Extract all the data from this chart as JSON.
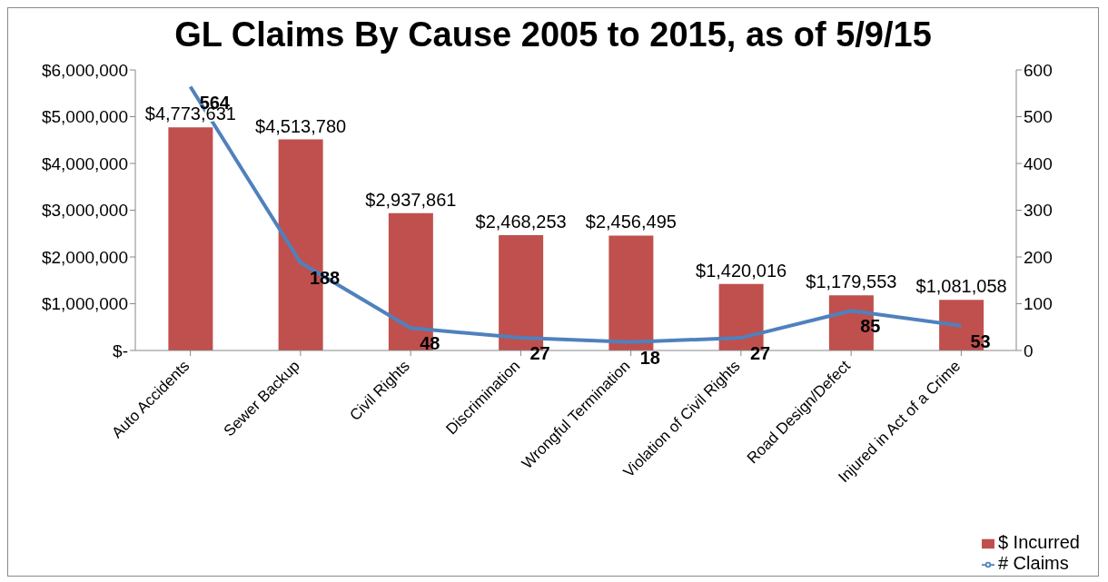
{
  "chart_data": {
    "type": "bar",
    "title": "GL Claims By Cause 2005 to 2015, as of 5/9/15",
    "categories": [
      "Auto Accidents",
      "Sewer Backup",
      "Civil Rights",
      "Discrimination",
      "Wrongful Termination",
      "Violation of Civil Rights",
      "Road Design/Defect",
      "Injured in Act of a Crime"
    ],
    "series": [
      {
        "name": "$ Incurred",
        "color": "#c0504d",
        "values": [
          4773631,
          4513780,
          2937861,
          2468253,
          2456495,
          1420016,
          1179553,
          1081058
        ],
        "value_labels": [
          "$4,773,631",
          "$4,513,780",
          "$2,937,861",
          "$2,468,253",
          "$2,456,495",
          "$1,420,016",
          "$1,179,553",
          "$1,081,058"
        ]
      },
      {
        "name": "# Claims",
        "type": "line",
        "axis": "y2",
        "color": "#4f81bd",
        "values": [
          564,
          188,
          48,
          27,
          18,
          27,
          85,
          53
        ],
        "value_labels": [
          "564",
          "188",
          "48",
          "27",
          "18",
          "27",
          "85",
          "53"
        ]
      }
    ],
    "ylim": [
      0,
      6000000
    ],
    "yticks": [
      {
        "value": 0,
        "label": "$-"
      },
      {
        "value": 1000000,
        "label": "$1,000,000"
      },
      {
        "value": 2000000,
        "label": "$2,000,000"
      },
      {
        "value": 3000000,
        "label": "$3,000,000"
      },
      {
        "value": 4000000,
        "label": "$4,000,000"
      },
      {
        "value": 5000000,
        "label": "$5,000,000"
      },
      {
        "value": 6000000,
        "label": "$6,000,000"
      }
    ],
    "y2lim": [
      0,
      600
    ],
    "y2ticks": [
      0,
      100,
      200,
      300,
      400,
      500,
      600
    ],
    "marker": "none",
    "line_style": "solid",
    "legend": "bottom right",
    "grid": false
  }
}
